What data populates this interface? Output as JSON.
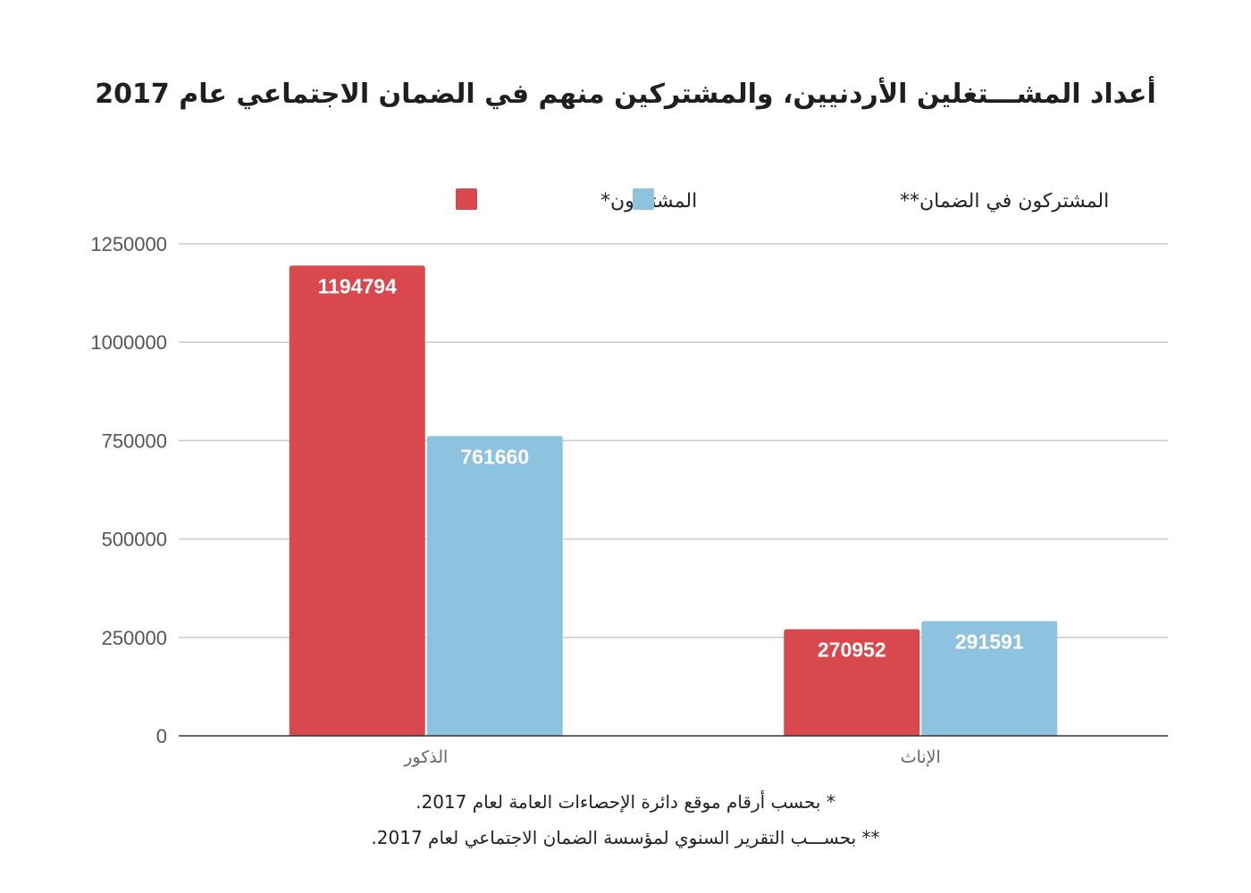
{
  "title": "أعداد المشـــتغلين الأردنيين، والمشتركين منهم في الضمان الاجتماعي عام 2017",
  "colors": {
    "series1": "#d9484c",
    "series2": "#8ec3e0",
    "grid": "#cccccc",
    "axis": "#333333"
  },
  "chart_data": {
    "type": "bar",
    "categories": [
      "الذكور",
      "الإناث"
    ],
    "series": [
      {
        "name": "المشتغلون*",
        "values": [
          1194794,
          270952
        ]
      },
      {
        "name": "المشتركون في الضمان**",
        "values": [
          761660,
          291591
        ]
      }
    ],
    "ylim": [
      0,
      1250000
    ],
    "yticks": [
      0,
      250000,
      500000,
      750000,
      1000000,
      1250000
    ],
    "grid": true,
    "legend_position": "top"
  },
  "footnotes": [
    "* بحسب أرقام موقع دائرة الإحصاءات العامة لعام 2017.",
    "** بحســـب التقرير السنوي لمؤسسة الضمان الاجتماعي لعام 2017."
  ]
}
